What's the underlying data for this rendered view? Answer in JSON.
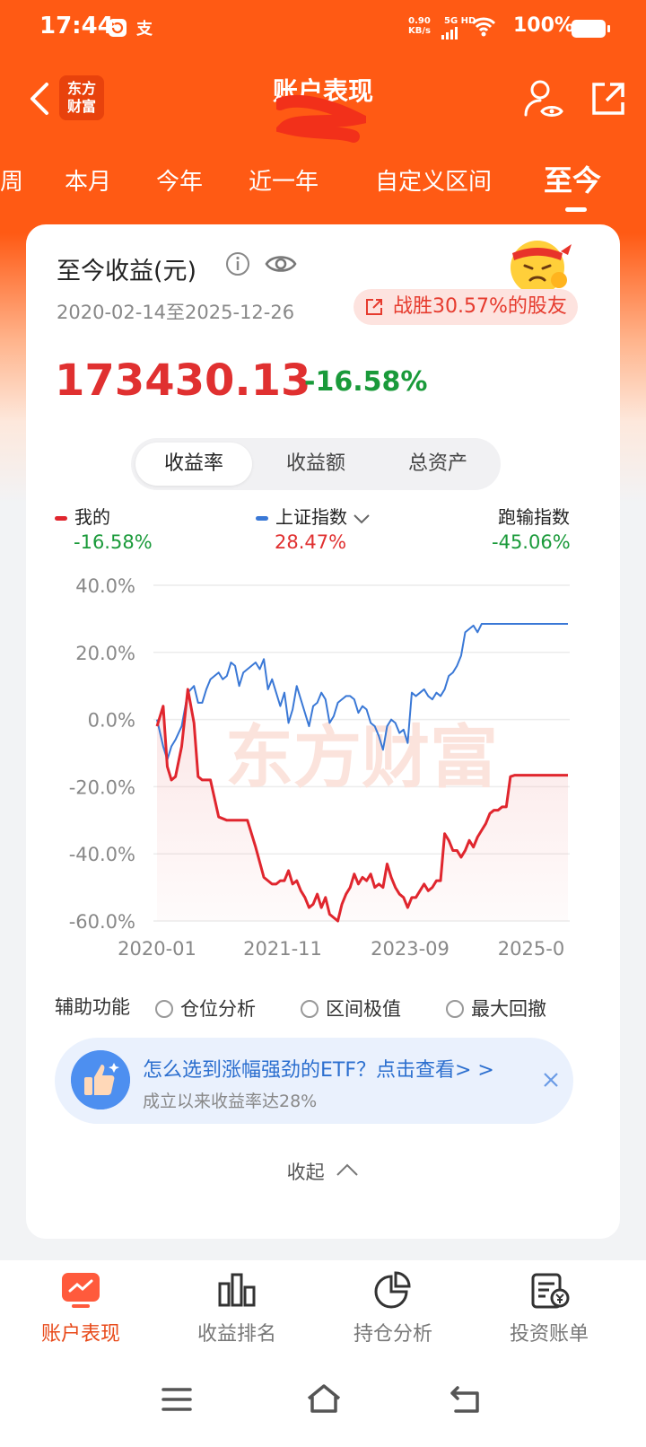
{
  "status_bar": {
    "time": "17:44",
    "net_speed": "0.90",
    "net_unit": "KB/s",
    "network": "5G HD",
    "battery": "100%"
  },
  "nav": {
    "title": "账户表现",
    "logo_line1": "东方",
    "logo_line2": "财富"
  },
  "tabs": [
    "周",
    "本月",
    "今年",
    "近一年",
    "自定义区间",
    "至今"
  ],
  "card": {
    "title": "至今收益(元)",
    "date_range": "2020-02-14至2025-12-26",
    "beat_text": "战胜30.57%的股友",
    "profit": "173430.13",
    "profit_pct": "-16.58%",
    "segments": [
      "收益率",
      "收益额",
      "总资产"
    ],
    "legend": {
      "mine_label": "我的",
      "mine_value": "-16.58%",
      "index_label": "上证指数",
      "index_value": "28.47%",
      "diff_label": "跑输指数",
      "diff_value": "-45.06%"
    },
    "aux": {
      "label": "辅助功能",
      "options": [
        "仓位分析",
        "区间极值",
        "最大回撤"
      ]
    },
    "promo": {
      "title": "怎么选到涨幅强劲的ETF？点击查看> >",
      "subtitle": "成立以来收益率达28%"
    },
    "collapse": "收起",
    "watermark": "东方财富"
  },
  "chart_data": {
    "type": "line",
    "ylim": [
      -60,
      40
    ],
    "yticks": [
      "40.0%",
      "20.0%",
      "0.0%",
      "-20.0%",
      "-40.0%",
      "-60.0%"
    ],
    "xticks": [
      "2020-01",
      "2021-11",
      "2023-09",
      "2025-0"
    ],
    "colors": {
      "mine": "#e0262e",
      "index": "#3a78d6"
    },
    "series": [
      {
        "name": "我的",
        "color": "#e0262e",
        "x": [
          0,
          1.5,
          2.5,
          3.5,
          4.5,
          6,
          7.5,
          9,
          10,
          11,
          13,
          15,
          17,
          19,
          20,
          22,
          24,
          26,
          28,
          29,
          30,
          31,
          32,
          33,
          34,
          35,
          36,
          37,
          38,
          39,
          40,
          41,
          42,
          43,
          44,
          45,
          46,
          47,
          48,
          49,
          50,
          51,
          52,
          53,
          54,
          55,
          56,
          57,
          58,
          59,
          60,
          61,
          62,
          63,
          64,
          65,
          66,
          67,
          68,
          69,
          70,
          71,
          72,
          73,
          74,
          75,
          76,
          77,
          78,
          79,
          80,
          81,
          82,
          83,
          84,
          85,
          86,
          87,
          88,
          89,
          90,
          91,
          92,
          93,
          94,
          95,
          96,
          97,
          98,
          99,
          100
        ],
        "y": [
          -2,
          4,
          -14,
          -18,
          -17,
          -8,
          9,
          -1,
          -17,
          -18,
          -18,
          -29,
          -30,
          -30,
          -30,
          -30,
          -38,
          -47,
          -49,
          -49,
          -48,
          -48,
          -45,
          -49,
          -48,
          -51,
          -53,
          -56,
          -55,
          -52,
          -56,
          -53,
          -58,
          -59,
          -60,
          -55,
          -52,
          -50,
          -46,
          -49,
          -47,
          -48,
          -46,
          -50,
          -49,
          -50,
          -43,
          -47,
          -50,
          -52,
          -53,
          -56,
          -53,
          -53,
          -51,
          -49,
          -51,
          -50,
          -48,
          -48,
          -34,
          -36,
          -39,
          -39,
          -41,
          -39,
          -36,
          -38,
          -35,
          -33,
          -31,
          -28,
          -27,
          -27,
          -26,
          -26,
          -17,
          -16.6,
          -16.6,
          -16.6,
          -16.6,
          -16.6,
          -16.6,
          -16.6,
          -16.6,
          -16.6,
          -16.6,
          -16.6,
          -16.6,
          -16.6,
          -16.6
        ]
      },
      {
        "name": "上证指数",
        "color": "#3a78d6",
        "x": [
          0,
          1.5,
          2.5,
          3.5,
          4.5,
          6,
          7.5,
          9,
          10,
          11,
          12,
          13,
          14,
          15,
          16,
          17,
          18,
          19,
          20,
          21,
          22,
          23,
          24,
          25,
          26,
          27,
          28,
          29,
          30,
          31,
          32,
          33,
          34,
          35,
          36,
          37,
          38,
          39,
          40,
          41,
          42,
          43,
          44,
          45,
          46,
          47,
          48,
          49,
          50,
          51,
          52,
          53,
          54,
          55,
          56,
          57,
          58,
          59,
          60,
          61,
          62,
          63,
          64,
          65,
          66,
          67,
          68,
          69,
          70,
          71,
          72,
          73,
          74,
          75,
          76,
          77,
          78,
          79,
          80,
          81,
          82,
          83,
          84,
          85,
          86,
          87,
          88,
          89,
          90,
          91,
          92,
          93,
          94,
          95,
          96,
          97,
          98,
          99,
          100
        ],
        "y": [
          0,
          -8,
          -12,
          -8,
          -6,
          -2,
          8,
          10,
          5,
          5,
          9,
          12,
          13,
          14,
          12,
          13,
          17,
          16,
          10,
          14,
          15,
          16,
          17,
          15,
          18,
          9,
          12,
          8,
          4,
          8,
          -1,
          3,
          10,
          6,
          2,
          -2,
          4,
          5,
          8,
          6,
          -1,
          1,
          5,
          6,
          7,
          7,
          6,
          2,
          4,
          3,
          -1,
          -2,
          -5,
          -9,
          -2,
          0,
          -1,
          -4,
          -3,
          -7,
          8,
          7,
          8,
          9,
          7,
          6,
          8,
          7,
          9,
          13,
          14,
          16,
          19,
          26,
          27,
          28,
          26,
          28.5,
          28.5,
          28.5,
          28.5,
          28.5,
          28.5,
          28.5,
          28.5,
          28.5,
          28.5,
          28.5,
          28.5,
          28.5,
          28.5,
          28.5,
          28.5,
          28.5,
          28.5,
          28.5,
          28.5,
          28.5,
          28.5
        ]
      }
    ]
  },
  "bottom_nav": [
    "账户表现",
    "收益排名",
    "持仓分析",
    "投资账单"
  ]
}
